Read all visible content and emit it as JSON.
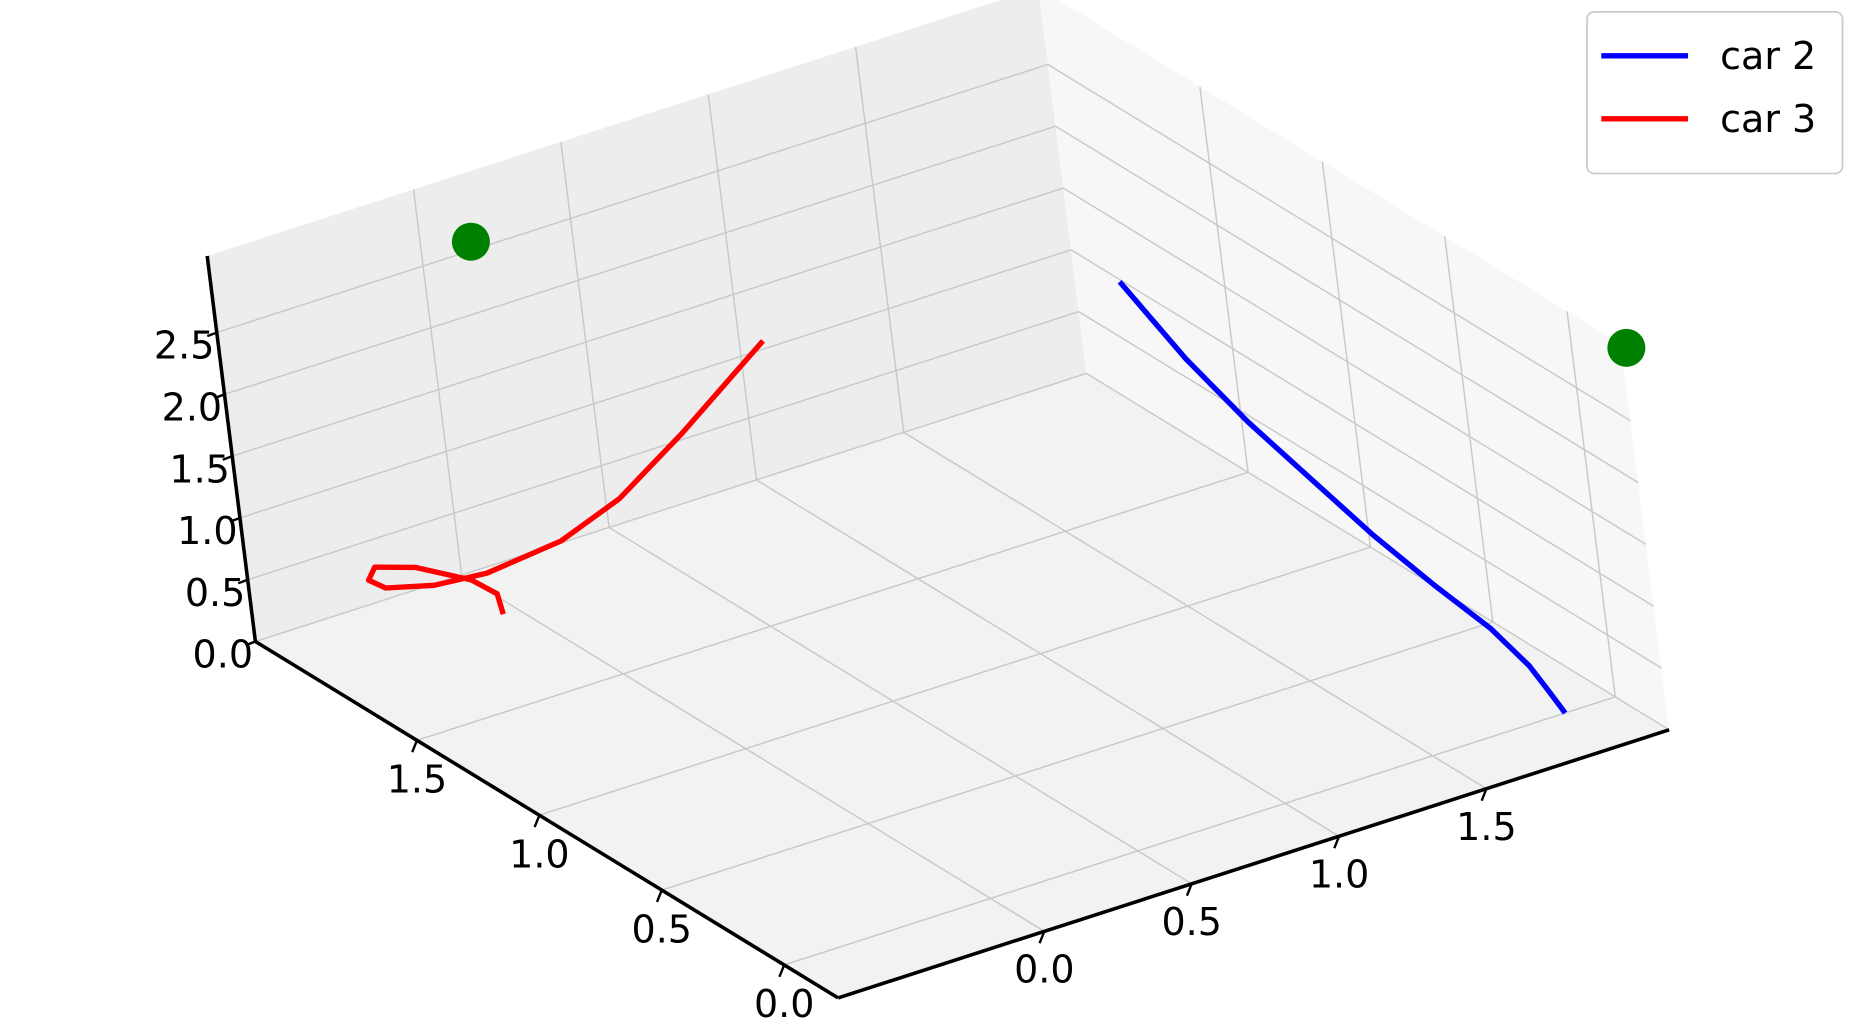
{
  "chart_data": {
    "type": "line3d",
    "legend": "upper right",
    "grid": true,
    "xlim": [
      -0.22,
      2.16
    ],
    "ylim": [
      -0.7,
      2.12
    ],
    "zlim": [
      0,
      3.12
    ],
    "xticks": [
      {
        "value": 0,
        "label": "0.0"
      },
      0.5,
      {
        "value": 1,
        "label": "1.0"
      },
      1.5
    ],
    "yticks": [
      {
        "value": 0,
        "label": "0.0"
      },
      0.5,
      {
        "value": 1,
        "label": "1.0"
      },
      1.5
    ],
    "zticks": [
      {
        "value": 0,
        "label": "0.0"
      },
      0.5,
      {
        "value": 1,
        "label": "1.0"
      },
      1.5,
      {
        "value": 2,
        "label": "2.0"
      },
      2.5
    ],
    "series": [
      {
        "name": "car 2",
        "color": "#0000ff",
        "x": [
          1.8,
          1.55,
          1.31,
          1.05,
          0.82,
          0.58,
          0.35,
          0.2,
          0.1,
          0.0
        ],
        "y": [
          2.0,
          2.0,
          2.0,
          2.0,
          2.0,
          2.0,
          2.0,
          2.0,
          1.98,
          1.95
        ],
        "z": [
          1.27,
          0.95,
          0.73,
          0.56,
          0.41,
          0.3,
          0.22,
          0.1,
          0.03,
          0.0
        ]
      },
      {
        "name": "car 3",
        "color": "#ff0000",
        "x": [
          1.93,
          2.0,
          2.08,
          2.09,
          2.12,
          2.1,
          2.07,
          2.03,
          2.02,
          2.0,
          1.99,
          1.99,
          2.0
        ],
        "y": [
          -0.05,
          -0.01,
          -0.03,
          -0.2,
          -0.31,
          -0.35,
          -0.32,
          -0.19,
          -0.02,
          0.22,
          0.42,
          0.65,
          0.96
        ],
        "z": [
          0.0,
          0.05,
          0.08,
          0.3,
          0.35,
          0.3,
          0.25,
          0.22,
          0.2,
          0.3,
          0.5,
          0.85,
          1.35
        ]
      }
    ],
    "points": {
      "color": "#008000",
      "x": [
        2.03,
        -0.12
      ],
      "y": [
        0.07,
        2.21
      ],
      "z": [
        2.8,
        2.9
      ]
    }
  }
}
